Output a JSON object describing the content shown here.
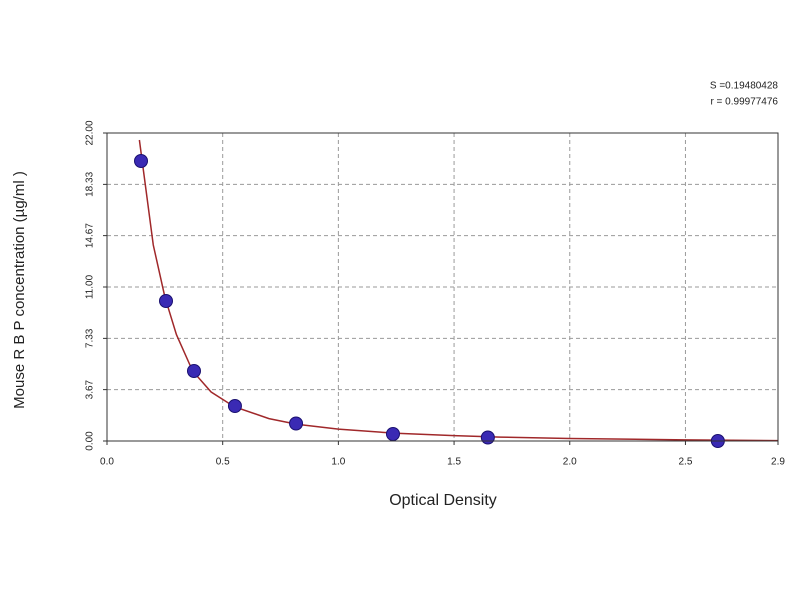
{
  "chart_data": {
    "type": "scatter",
    "annotations": [
      "S =0.19480428",
      "r = 0.99977476"
    ],
    "x_label": "Optical Density",
    "y_label": "Mouse R B P concentration (µg/ml )",
    "xlim": [
      0,
      2.9
    ],
    "ylim": [
      0,
      22
    ],
    "xticks": [
      {
        "value": 0,
        "label": "0.0"
      },
      0.5,
      {
        "value": 1,
        "label": "1.0"
      },
      1.5,
      {
        "value": 2,
        "label": "2.0"
      },
      2.5,
      2.9
    ],
    "yticks": [
      {
        "value": 0,
        "label": "0.00"
      },
      3.67,
      7.33,
      {
        "value": 11,
        "label": "11.00"
      },
      14.67,
      18.33,
      {
        "value": 22,
        "label": "22.00"
      }
    ],
    "grid": true,
    "series": [
      {
        "type": "scatter",
        "color": "#3a2ab4",
        "x": [
          0.147,
          0.255,
          0.376,
          0.553,
          0.817,
          1.236,
          1.646,
          2.64
        ],
        "values": [
          20,
          10,
          5,
          2.5,
          1.25,
          0.5,
          0.25,
          0
        ]
      },
      {
        "type": "line",
        "color": "#a0282a",
        "x": [
          0.14,
          0.2,
          0.25,
          0.3,
          0.37,
          0.45,
          0.55,
          0.7,
          0.82,
          1.0,
          1.25,
          1.5,
          1.7,
          2.0,
          2.5,
          2.9
        ],
        "values": [
          21.5,
          14,
          10.3,
          7.6,
          5.0,
          3.5,
          2.45,
          1.6,
          1.2,
          0.85,
          0.55,
          0.38,
          0.28,
          0.18,
          0.08,
          0.03
        ]
      }
    ]
  }
}
